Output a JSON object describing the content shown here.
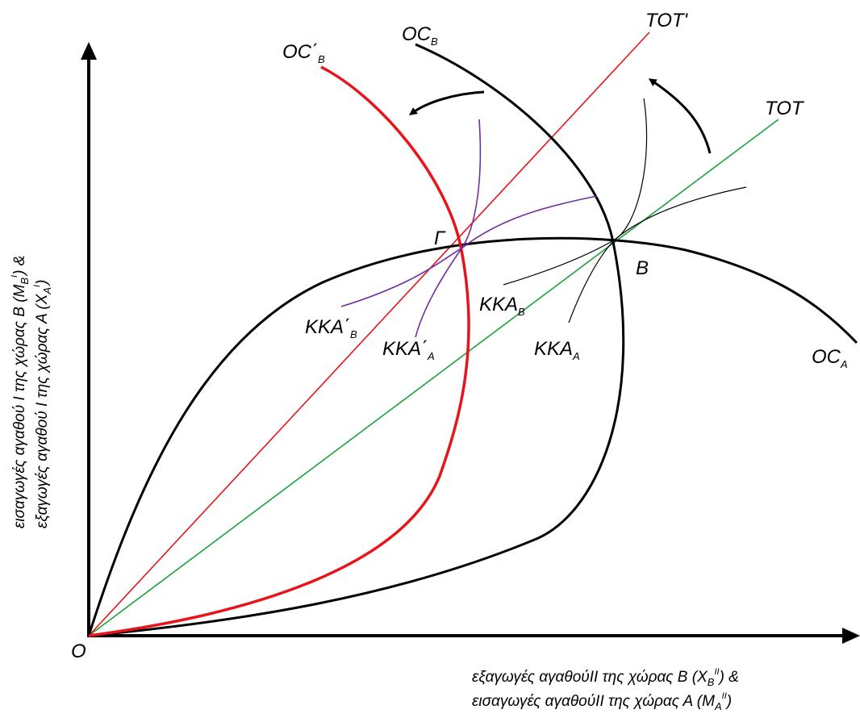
{
  "labels": {
    "origin": "O",
    "point_b": "B",
    "point_gamma": "Γ",
    "tot": "TOT",
    "tot_prime": "TOT'",
    "oc_a": {
      "main": "OC",
      "sub": "A"
    },
    "oc_b": {
      "main": "OC",
      "sub": "B"
    },
    "oc_b_prime": {
      "main": "OC΄",
      "sub": "B"
    },
    "kka_a": {
      "main": "KKA",
      "sub": "A"
    },
    "kka_b": {
      "main": "KKA",
      "sub": "B"
    },
    "kka_a_prime": {
      "main": "KKA΄",
      "sub": "A"
    },
    "kka_b_prime": {
      "main": "KKA΄",
      "sub": "B"
    }
  },
  "y_axis": {
    "line1": {
      "text": "εισαγωγές αγαθού Ι  της χώρας Β (M",
      "sub": "B",
      "sup": "I",
      "end": ") &"
    },
    "line2": {
      "text": "εξαγωγές αγαθού Ι  της χώρας Α (X",
      "sub": "A",
      "sup": "I",
      "end": ")"
    }
  },
  "x_axis": {
    "line1": {
      "text": "εξαγωγές αγαθούΙΙ της  χώρας Β (X",
      "sub": "B",
      "sup": "II",
      "end": ") &"
    },
    "line2": {
      "text": "εισαγωγές αγαθούΙΙ  της χώρας Α (M",
      "sub": "A",
      "sup": "II",
      "end": ")"
    }
  },
  "colors": {
    "curves": "#000000",
    "oc_b_prime": "#e8141c",
    "tot_prime": "#e8141c",
    "tot": "#1aa33a",
    "indifference_prime": "#7030a0"
  }
}
